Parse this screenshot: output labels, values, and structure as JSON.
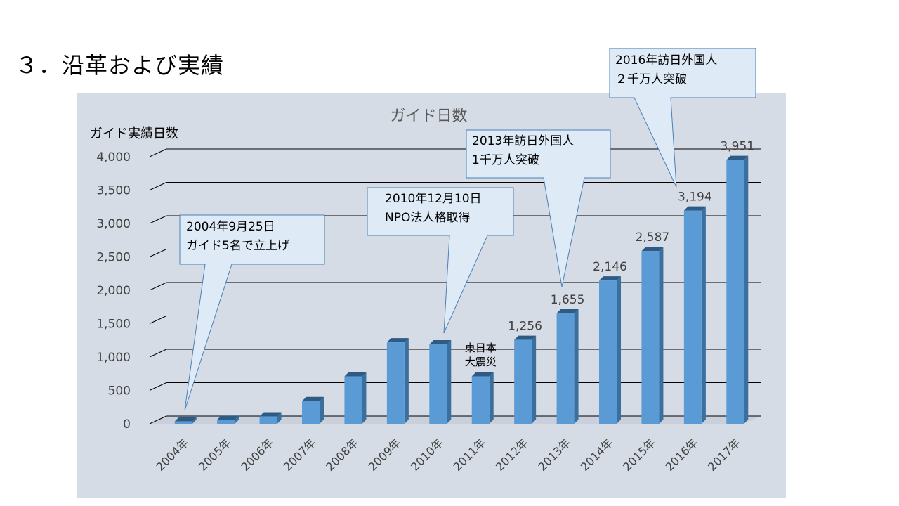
{
  "slide": {
    "title": "３．沿革および実績"
  },
  "colors": {
    "plot_bg": "#d6dce5",
    "bar_front": "#5b9bd5",
    "bar_side": "#3b6f9e",
    "bar_top": "#2e5b85",
    "gridline": "#000000",
    "callout_fill": "#deebf7",
    "callout_stroke": "#4a7fb5"
  },
  "chart_data": {
    "type": "bar",
    "title": "ガイド日数",
    "ylabel": "ガイド実績日数",
    "xlabel": "",
    "categories": [
      "2004年",
      "2005年",
      "2006年",
      "2007年",
      "2008年",
      "2009年",
      "2010年",
      "2011年",
      "2012年",
      "2013年",
      "2014年",
      "2015年",
      "2016年",
      "2017年"
    ],
    "values": [
      35,
      60,
      110,
      340,
      710,
      1220,
      1190,
      710,
      1256,
      1655,
      2146,
      2587,
      3194,
      3951
    ],
    "data_labels": {
      "8": "1,256",
      "9": "1,655",
      "10": "2,146",
      "11": "2,587",
      "12": "3,194",
      "13": "3,951"
    },
    "ylim": [
      0,
      4000
    ],
    "yticks": [
      0,
      500,
      1000,
      1500,
      2000,
      2500,
      3000,
      3500,
      4000
    ],
    "ytick_labels": [
      "0",
      "500",
      "1,000",
      "1,500",
      "2,000",
      "2,500",
      "3,000",
      "3,500",
      "4,000"
    ],
    "grid": true,
    "legend": "none",
    "annotations": [
      {
        "name": "callout-2004",
        "lines": [
          "2004年9月25日",
          "ガイド5名で立上げ"
        ],
        "category_index": 0
      },
      {
        "name": "callout-2010",
        "lines": [
          "2010年12月10日",
          "NPO法人格取得"
        ],
        "category_index": 6
      },
      {
        "name": "callout-2013",
        "lines": [
          "2013年訪日外国人",
          "1千万人突破"
        ],
        "category_index": 9
      },
      {
        "name": "callout-2016",
        "lines": [
          "2016年訪日外国人",
          "２千万人突破"
        ],
        "category_index": 12
      }
    ],
    "bar_note": {
      "category_index": 7,
      "lines": [
        "東日本",
        "大震災"
      ]
    }
  }
}
